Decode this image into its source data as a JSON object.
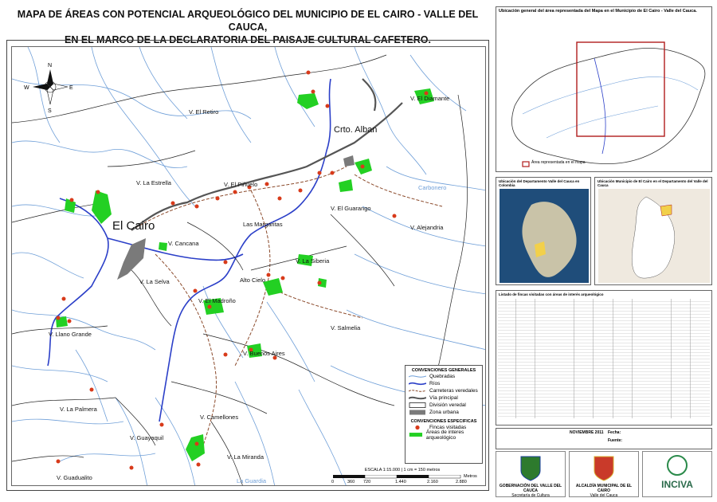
{
  "title": {
    "line1": "MAPA DE ÁREAS CON POTENCIAL ARQUEOLÓGICO DEL MUNICIPIO DE EL CAIRO - VALLE DEL CAUCA,",
    "line2": "EN EL MARCO DE LA DECLARATORIA DEL PAISAJE CULTURAL CAFETERO."
  },
  "map_labels": {
    "el_cairo": "El Cairo",
    "crto_alban": "Crto. Alban",
    "v_el_retiro": "V. El Retiro",
    "v_el_boquerón_area": "V. El Diamante",
    "v_la_estrella": "V. La Estrella",
    "v_el_piñuelo": "V. El Piñuelo",
    "v_el_guarango": "V. El Guarango",
    "v_alejandria": "V. Alejandria",
    "las_margaritas": "Las Margaritas",
    "v_cancana": "V. Cancana",
    "v_la_selva": "V. La Selva",
    "alto_cielo": "Alto Cielo",
    "v_la_siberia": "V. La Siberia",
    "v_el_madroño": "V. El Madroño",
    "v_llano_grande": "V. Llano Grande",
    "v_salmelia": "V. Salmelia",
    "v_buenos_aires": "V. Buenos Aires",
    "v_la_palmera": "V. La Palmera",
    "v_camellones": "V. Camellones",
    "v_guayaquil": "V. Guayaquil",
    "v_la_miranda": "V. La Miranda",
    "v_guadualito": "V. Guadualito",
    "carbonero": "Carbonero",
    "la_guardia": "La Guardia"
  },
  "legend": {
    "title_general": "CONVENCIONES GENERALES",
    "items_general": [
      "Quebradas",
      "Ríos",
      "Carreteras veredales",
      "Vía principal",
      "División veredal",
      "Zona urbana"
    ],
    "title_specific": "CONVENCIONES ESPECIFICAS",
    "items_specific": [
      "Fincas visitadas",
      "Áreas de interes arqueológico"
    ]
  },
  "scale": {
    "text": "ESCALA 1:15.000 | 1 cm = 150 metros",
    "ticks": [
      "0",
      "360",
      "720",
      "1.440",
      "2.160",
      "2.880"
    ],
    "unit": "Metros"
  },
  "panels": {
    "general": "Ubicación general del área representada del Mapa en el Municipio de El Cairo - Valle del Cauca.",
    "colombia": "Ubicación del Departamento Valle del Cauca en Colombia",
    "valle": "Ubicación Municipio de El Cairo en el Departamento del Valle del Cauca",
    "area_representada": "Área representada en el mapa"
  },
  "table": {
    "title": "Listado de fincas visitadas con áreas de interés arqueológico",
    "date_label": "Fecha:",
    "date": "NOVIEMBRE 2011",
    "source_label": "Fuente:"
  },
  "logos": {
    "gobernacion": "GOBERNACIÓN DEL VALLE DEL CAUCA",
    "gobernacion_sub": "Secretaría de Cultura",
    "alcaldia": "ALCALDÍA MUNICIPAL DE EL CAIRO",
    "alcaldia_sub": "Valle del Cauca",
    "inciva": "INCIVA"
  },
  "colors": {
    "river": "#2b3fc8",
    "stream": "#6f9fd8",
    "road": "#8b4a2b",
    "main_road": "#555555",
    "area": "#23d023",
    "urban": "#7a7a7a",
    "point": "#d83a1a"
  }
}
